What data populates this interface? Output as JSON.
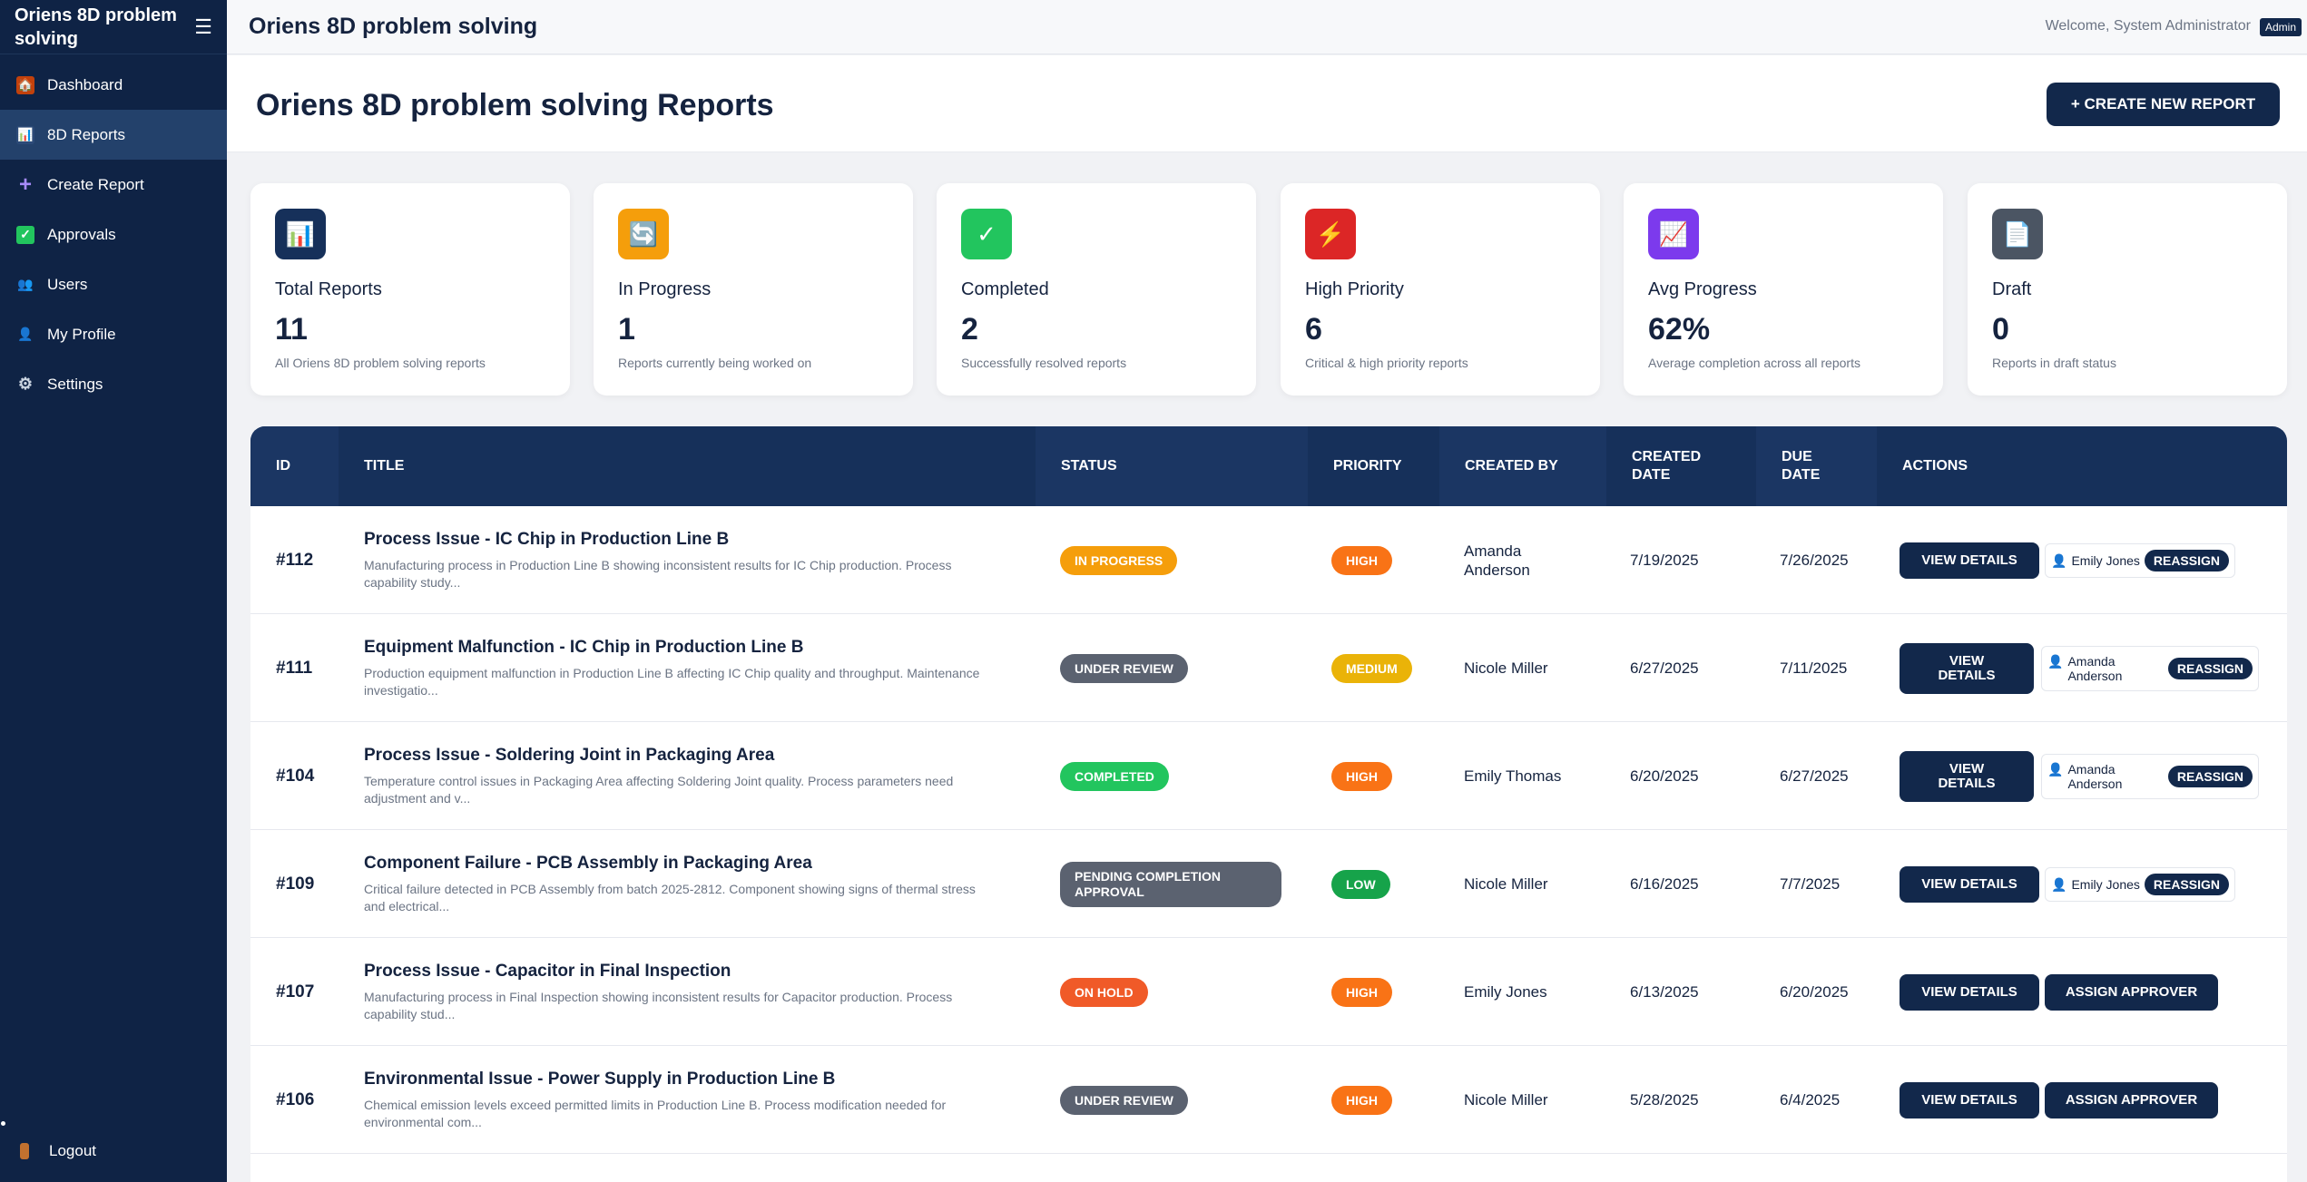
{
  "sidebar": {
    "brand": "Oriens 8D problem solving",
    "items": [
      {
        "label": "Dashboard",
        "icon": "house-icon",
        "glyph": "🏠"
      },
      {
        "label": "8D Reports",
        "icon": "bar-chart-icon",
        "glyph": "📊"
      },
      {
        "label": "Create Report",
        "icon": "plus-icon",
        "glyph": "+"
      },
      {
        "label": "Approvals",
        "icon": "check-icon",
        "glyph": "✓"
      },
      {
        "label": "Users",
        "icon": "users-icon",
        "glyph": "👥"
      },
      {
        "label": "My Profile",
        "icon": "person-icon",
        "glyph": "👤"
      },
      {
        "label": "Settings",
        "icon": "gear-icon",
        "glyph": "⚙"
      }
    ],
    "logout": "Logout"
  },
  "topbar": {
    "title": "Oriens 8D problem solving",
    "welcome": "Welcome, System Administrator",
    "role": "Admin"
  },
  "header": {
    "title": "Oriens 8D problem solving Reports",
    "create_button": "+ CREATE NEW REPORT"
  },
  "cards": [
    {
      "label": "Total Reports",
      "value": "11",
      "desc": "All Oriens 8D problem solving reports",
      "icon": "bar-chart-icon",
      "glyph": "📊",
      "color": "#16305a"
    },
    {
      "label": "In Progress",
      "value": "1",
      "desc": "Reports currently being worked on",
      "icon": "refresh-icon",
      "glyph": "🔄",
      "color": "#f59e0b"
    },
    {
      "label": "Completed",
      "value": "2",
      "desc": "Successfully resolved reports",
      "icon": "check-icon",
      "glyph": "✓",
      "color": "#22c55e"
    },
    {
      "label": "High Priority",
      "value": "6",
      "desc": "Critical & high priority reports",
      "icon": "lightning-icon",
      "glyph": "⚡",
      "color": "#dc2626"
    },
    {
      "label": "Avg Progress",
      "value": "62%",
      "desc": "Average completion across all reports",
      "icon": "trend-chart-icon",
      "glyph": "📈",
      "color": "#7c3aed"
    },
    {
      "label": "Draft",
      "value": "0",
      "desc": "Reports in draft status",
      "icon": "document-icon",
      "glyph": "📄",
      "color": "#4b5563"
    }
  ],
  "table": {
    "headers": {
      "id": "ID",
      "title": "TITLE",
      "status": "STATUS",
      "priority": "PRIORITY",
      "created_by": "CREATED BY",
      "created_date_1": "CREATED",
      "created_date_2": "DATE",
      "due_date_1": "DUE",
      "due_date_2": "DATE",
      "actions": "ACTIONS"
    },
    "rows": [
      {
        "id": "#112",
        "title": "Process Issue - IC Chip in Production Line B",
        "desc1": "Manufacturing process in Production Line B showing inconsistent results for IC Chip production. Process",
        "desc2": "capability study...",
        "status": "IN PROGRESS",
        "status_color": "#f59e0b",
        "priority": "HIGH",
        "priority_color": "#f97316",
        "created_by_1": "Amanda",
        "created_by_2": "Anderson",
        "created_date": "7/19/2025",
        "due_date": "7/26/2025",
        "view_1": "VIEW DETAILS",
        "view_2": "",
        "assignee_1": "Emily Jones",
        "assignee_2": "",
        "reassign": "REASSIGN"
      },
      {
        "id": "#111",
        "title": "Equipment Malfunction - IC Chip in Production Line B",
        "desc1": "Production equipment malfunction in Production Line B affecting IC Chip quality and throughput. Maintenance",
        "desc2": "investigatio...",
        "status": "UNDER REVIEW",
        "status_color": "#5b6270",
        "priority": "MEDIUM",
        "priority_color": "#eab308",
        "created_by_1": "Nicole Miller",
        "created_by_2": "",
        "created_date": "6/27/2025",
        "due_date": "7/11/2025",
        "view_1": "VIEW",
        "view_2": "DETAILS",
        "assignee_1": "Amanda",
        "assignee_2": "Anderson",
        "reassign": "REASSIGN"
      },
      {
        "id": "#104",
        "title": "Process Issue - Soldering Joint in Packaging Area",
        "desc1": "Temperature control issues in Packaging Area affecting Soldering Joint quality. Process parameters need",
        "desc2": "adjustment and v...",
        "status": "COMPLETED",
        "status_color": "#22c55e",
        "priority": "HIGH",
        "priority_color": "#f97316",
        "created_by_1": "Emily Thomas",
        "created_by_2": "",
        "created_date": "6/20/2025",
        "due_date": "6/27/2025",
        "view_1": "VIEW",
        "view_2": "DETAILS",
        "assignee_1": "Amanda",
        "assignee_2": "Anderson",
        "reassign": "REASSIGN"
      },
      {
        "id": "#109",
        "title": "Component Failure - PCB Assembly in Packaging Area",
        "desc1": "Critical failure detected in PCB Assembly from batch 2025-2812. Component showing signs of thermal stress",
        "desc2": "and electrical...",
        "status_1": "PENDING COMPLETION",
        "status_2": "APPROVAL",
        "status_color": "#5b6270",
        "priority": "LOW",
        "priority_color": "#16a34a",
        "created_by_1": "Nicole Miller",
        "created_by_2": "",
        "created_date": "6/16/2025",
        "due_date": "7/7/2025",
        "view_1": "VIEW DETAILS",
        "view_2": "",
        "assignee_1": "Emily Jones",
        "assignee_2": "",
        "reassign": "REASSIGN"
      },
      {
        "id": "#107",
        "title": "Process Issue - Capacitor in Final Inspection",
        "desc1": "Manufacturing process in Final Inspection showing inconsistent results for Capacitor production. Process",
        "desc2": "capability stud...",
        "status": "ON HOLD",
        "status_color": "#f05a28",
        "priority": "HIGH",
        "priority_color": "#f97316",
        "created_by_1": "Emily Jones",
        "created_by_2": "",
        "created_date": "6/13/2025",
        "due_date": "6/20/2025",
        "view_1": "VIEW DETAILS",
        "view_2": "",
        "assign_approver": "ASSIGN APPROVER"
      },
      {
        "id": "#106",
        "title": "Environmental Issue - Power Supply in Production Line B",
        "desc1": "Chemical emission levels exceed permitted limits in Production Line B. Process modification needed for",
        "desc2": "environmental com...",
        "status": "UNDER REVIEW",
        "status_color": "#5b6270",
        "priority": "HIGH",
        "priority_color": "#f97316",
        "created_by_1": "Nicole Miller",
        "created_by_2": "",
        "created_date": "5/28/2025",
        "due_date": "6/4/2025",
        "view_1": "VIEW DETAILS",
        "view_2": "",
        "assign_approver": "ASSIGN APPROVER"
      }
    ]
  }
}
